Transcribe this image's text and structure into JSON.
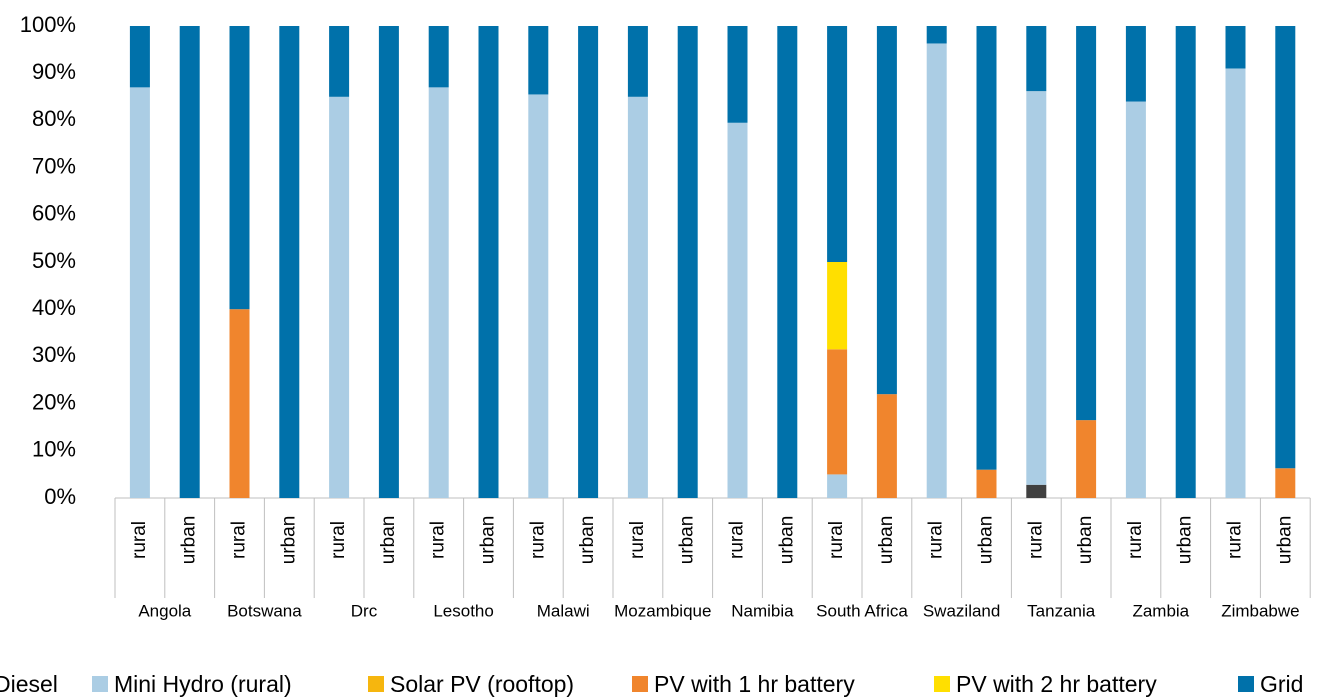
{
  "chart_data": {
    "type": "stacked-bar",
    "categories": [
      "rural",
      "urban",
      "rural",
      "urban",
      "rural",
      "urban",
      "rural",
      "urban",
      "rural",
      "urban",
      "rural",
      "urban",
      "rural",
      "urban",
      "rural",
      "urban",
      "rural",
      "urban",
      "rural",
      "urban",
      "rural",
      "urban",
      "rural",
      "urban"
    ],
    "groups": [
      "Angola",
      "Botswana",
      "Drc",
      "Lesotho",
      "Malawi",
      "Mozambique",
      "Namibia",
      "South Africa",
      "Swaziland",
      "Tanzania",
      "Zambia",
      "Zimbabwe"
    ],
    "series": [
      {
        "name": "Diesel",
        "color": "#404040",
        "values": [
          0,
          0,
          0,
          0,
          0,
          0,
          0,
          0,
          0,
          0,
          0,
          0,
          0,
          0,
          0,
          0,
          0,
          0,
          2.8,
          0,
          0,
          0,
          0,
          0
        ]
      },
      {
        "name": "Mini Hydro (rural)",
        "color": "#abcde4",
        "values": [
          87,
          0,
          0,
          0,
          85,
          0,
          87,
          0,
          85.5,
          0,
          85,
          0,
          79.5,
          0,
          5,
          0,
          96.3,
          0,
          83.4,
          0,
          84,
          0,
          91,
          0
        ]
      },
      {
        "name": "Solar PV (rooftop)",
        "color": "#f6b60e",
        "values": [
          0,
          0,
          0,
          0,
          0,
          0,
          0,
          0,
          0,
          0,
          0,
          0,
          0,
          0,
          0,
          0,
          0,
          0,
          0,
          0,
          0,
          0,
          0,
          0
        ]
      },
      {
        "name": "PV with 1 hr battery",
        "color": "#f0852d",
        "values": [
          0,
          0,
          40,
          0,
          0,
          0,
          0,
          0,
          0,
          0,
          0,
          0,
          0,
          0,
          26.5,
          22,
          0,
          6,
          0,
          16.5,
          0,
          0,
          0,
          6.3
        ]
      },
      {
        "name": "PV with 2 hr battery",
        "color": "#ffdf00",
        "values": [
          0,
          0,
          0,
          0,
          0,
          0,
          0,
          0,
          0,
          0,
          0,
          0,
          0,
          0,
          18.5,
          0,
          0,
          0,
          0,
          0,
          0,
          0,
          0,
          0
        ]
      },
      {
        "name": "Grid",
        "color": "#0071aa",
        "values": [
          13,
          100,
          60,
          100,
          15,
          100,
          13,
          100,
          14.5,
          100,
          15,
          100,
          20.5,
          100,
          50,
          78,
          3.7,
          94,
          13.8,
          83.5,
          16,
          100,
          9,
          93.7
        ]
      }
    ],
    "ylim": [
      0,
      100
    ],
    "yticks": [
      {
        "value": 0,
        "label": "0%"
      },
      {
        "value": 10,
        "label": "10%"
      },
      {
        "value": 20,
        "label": "20%"
      },
      {
        "value": 30,
        "label": "30%"
      },
      {
        "value": 40,
        "label": "40%"
      },
      {
        "value": 50,
        "label": "50%"
      },
      {
        "value": 60,
        "label": "60%"
      },
      {
        "value": 70,
        "label": "70%"
      },
      {
        "value": 80,
        "label": "80%"
      },
      {
        "value": 90,
        "label": "90%"
      },
      {
        "value": 100,
        "label": "100%"
      }
    ],
    "grid": false,
    "legend": "bottom"
  }
}
